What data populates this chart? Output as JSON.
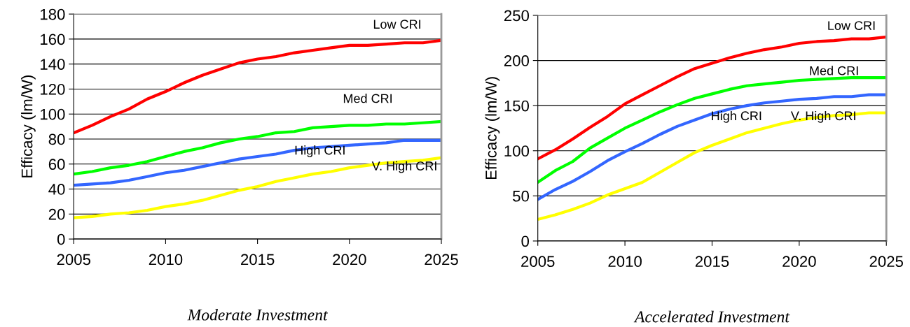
{
  "chart_data": [
    {
      "type": "line",
      "xlabel": "Moderate Investment",
      "ylabel": "Efficacy (lm/W)",
      "x": [
        2005,
        2006,
        2007,
        2008,
        2009,
        2010,
        2011,
        2012,
        2013,
        2014,
        2015,
        2016,
        2017,
        2018,
        2019,
        2020,
        2021,
        2022,
        2023,
        2024,
        2025
      ],
      "xlim": [
        2005,
        2025
      ],
      "xticks": [
        2005,
        2010,
        2015,
        2020,
        2025
      ],
      "ylim": [
        0,
        180
      ],
      "yticks": [
        0,
        20,
        40,
        60,
        80,
        100,
        120,
        140,
        160,
        180
      ],
      "grid": "y",
      "series": [
        {
          "name": "Low CRI",
          "color": "#ff0000",
          "values": [
            85,
            91,
            98,
            104,
            112,
            118,
            125,
            131,
            136,
            141,
            144,
            146,
            149,
            151,
            153,
            155,
            155,
            156,
            157,
            157,
            159
          ]
        },
        {
          "name": "Med CRI",
          "color": "#00ff00",
          "values": [
            52,
            54,
            57,
            59,
            62,
            66,
            70,
            73,
            77,
            80,
            82,
            85,
            86,
            89,
            90,
            91,
            91,
            92,
            92,
            93,
            94
          ]
        },
        {
          "name": "High CRI",
          "color": "#3366ff",
          "values": [
            43,
            44,
            45,
            47,
            50,
            53,
            55,
            58,
            61,
            64,
            66,
            68,
            71,
            73,
            74,
            75,
            76,
            77,
            79,
            79,
            79
          ]
        },
        {
          "name": "V. High CRI",
          "color": "#ffff00",
          "values": [
            17,
            18,
            20,
            21,
            23,
            26,
            28,
            31,
            35,
            39,
            42,
            46,
            49,
            52,
            54,
            57,
            59,
            61,
            62,
            63,
            65
          ]
        }
      ]
    },
    {
      "type": "line",
      "xlabel": "Accelerated Investment",
      "ylabel": "Efficacy (lm/W)",
      "x": [
        2005,
        2006,
        2007,
        2008,
        2009,
        2010,
        2011,
        2012,
        2013,
        2014,
        2015,
        2016,
        2017,
        2018,
        2019,
        2020,
        2021,
        2022,
        2023,
        2024,
        2025
      ],
      "xlim": [
        2005,
        2025
      ],
      "xticks": [
        2005,
        2010,
        2015,
        2020,
        2025
      ],
      "ylim": [
        0,
        250
      ],
      "yticks": [
        0,
        50,
        100,
        150,
        200,
        250
      ],
      "grid": "y",
      "series": [
        {
          "name": "Low CRI",
          "color": "#ff0000",
          "values": [
            91,
            101,
            113,
            126,
            138,
            152,
            162,
            172,
            182,
            191,
            197,
            203,
            208,
            212,
            215,
            219,
            221,
            222,
            224,
            224,
            226
          ]
        },
        {
          "name": "Med CRI",
          "color": "#00ff00",
          "values": [
            65,
            78,
            88,
            103,
            114,
            125,
            134,
            143,
            151,
            158,
            163,
            168,
            172,
            174,
            176,
            178,
            179,
            180,
            181,
            181,
            181
          ]
        },
        {
          "name": "High CRI",
          "color": "#3366ff",
          "values": [
            46,
            57,
            66,
            77,
            89,
            99,
            108,
            118,
            127,
            134,
            141,
            146,
            150,
            153,
            155,
            157,
            158,
            160,
            160,
            162,
            162
          ]
        },
        {
          "name": "V. High CRI",
          "color": "#ffff00",
          "values": [
            24,
            29,
            35,
            42,
            51,
            58,
            65,
            76,
            87,
            98,
            106,
            113,
            120,
            125,
            130,
            134,
            137,
            139,
            140,
            142,
            142
          ]
        }
      ]
    }
  ]
}
